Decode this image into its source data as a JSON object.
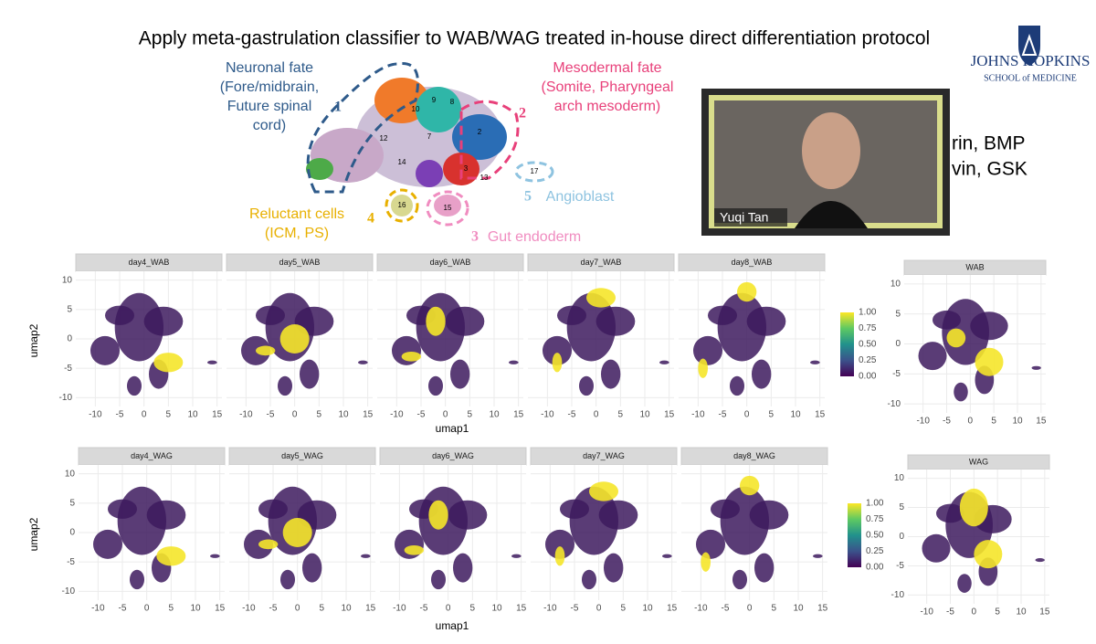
{
  "title": "Apply meta-gastrulation classifier to WAB/WAG treated in-house direct differentiation protocol",
  "logo": {
    "line1": "JOHNS HOPKINS",
    "line2": "SCHOOL of MEDICINE"
  },
  "umap_diagram": {
    "annotations": [
      {
        "number": "1",
        "lines": [
          "Neuronal fate",
          "(Fore/midbrain,",
          "Future spinal",
          "cord)"
        ]
      },
      {
        "number": "2",
        "lines": [
          "Mesodermal fate",
          "(Somite, Pharyngeal",
          "arch mesoderm)"
        ]
      },
      {
        "number": "3",
        "lines": [
          "Gut endoderm"
        ]
      },
      {
        "number": "4",
        "lines": [
          "Reluctant cells",
          "(ICM, PS)"
        ]
      },
      {
        "number": "5",
        "lines": [
          "Angioblast"
        ]
      }
    ],
    "clusters": [
      "17",
      "16",
      "15",
      "14",
      "13",
      "12",
      "10",
      "9",
      "8",
      "7",
      "3",
      "2"
    ]
  },
  "video": {
    "name": "Yuqi Tan"
  },
  "partial_text": [
    "rin, BMP",
    "vin, GSK"
  ],
  "rows": [
    {
      "panels": [
        "day4_WAB",
        "day5_WAB",
        "day6_WAB",
        "day7_WAB",
        "day8_WAB"
      ],
      "combined": "WAB"
    },
    {
      "panels": [
        "day4_WAG",
        "day5_WAG",
        "day6_WAG",
        "day7_WAG",
        "day8_WAG"
      ],
      "combined": "WAG"
    }
  ],
  "axes": {
    "xlabel": "umap1",
    "ylabel": "umap2",
    "xticks": [
      -10,
      -5,
      0,
      5,
      10,
      15
    ],
    "yticks": [
      10,
      5,
      0,
      -5,
      -10
    ]
  },
  "colorbar": {
    "ticks": [
      "1.00",
      "0.75",
      "0.50",
      "0.25",
      "0.00"
    ]
  }
}
